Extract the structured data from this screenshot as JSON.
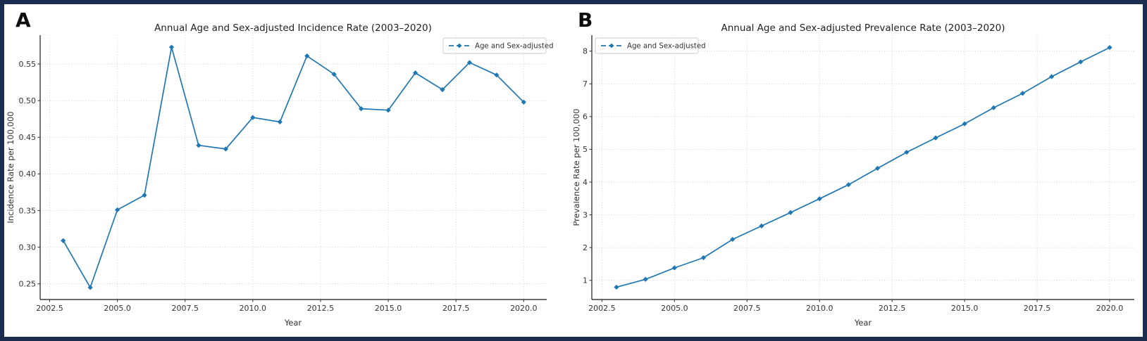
{
  "figure": {
    "frame_border_color": "#1b2d4f",
    "background_color": "#ffffff",
    "accent_line_color": "#1f77b4"
  },
  "chart_data": [
    {
      "panel_label": "A",
      "type": "line",
      "title": "Annual Age and Sex-adjusted Incidence Rate (2003–2020)",
      "xlabel": "Year",
      "ylabel": "Incidence Rate per 100,000",
      "legend": {
        "label": "Age and Sex-adjusted",
        "position": "top-right"
      },
      "line_color": "#1f77b4",
      "marker": "diamond",
      "grid": true,
      "x": [
        2003,
        2004,
        2005,
        2006,
        2007,
        2008,
        2009,
        2010,
        2011,
        2012,
        2013,
        2014,
        2015,
        2016,
        2017,
        2018,
        2019,
        2020
      ],
      "values": [
        0.309,
        0.245,
        0.351,
        0.371,
        0.573,
        0.439,
        0.434,
        0.477,
        0.471,
        0.561,
        0.536,
        0.489,
        0.487,
        0.538,
        0.515,
        0.552,
        0.535,
        0.498
      ],
      "xlim": [
        2002.15,
        2020.85
      ],
      "ylim": [
        0.2286,
        0.5894
      ],
      "xticks": {
        "values": [
          2002.5,
          2005.0,
          2007.5,
          2010.0,
          2012.5,
          2015.0,
          2017.5,
          2020.0
        ],
        "labels": [
          "2002.5",
          "2005.0",
          "2007.5",
          "2010.0",
          "2012.5",
          "2015.0",
          "2017.5",
          "2020.0"
        ]
      },
      "yticks": {
        "values": [
          0.25,
          0.3,
          0.35,
          0.4,
          0.45,
          0.5,
          0.55
        ],
        "labels": [
          "0.25",
          "0.30",
          "0.35",
          "0.40",
          "0.45",
          "0.50",
          "0.55"
        ]
      }
    },
    {
      "panel_label": "B",
      "type": "line",
      "title": "Annual Age and Sex-adjusted Prevalence Rate (2003–2020)",
      "xlabel": "Year",
      "ylabel": "Prevalence Rate per 100,000",
      "legend": {
        "label": "Age and Sex-adjusted",
        "position": "top-left"
      },
      "line_color": "#1f77b4",
      "marker": "diamond",
      "grid": true,
      "x": [
        2003,
        2004,
        2005,
        2006,
        2007,
        2008,
        2009,
        2010,
        2011,
        2012,
        2013,
        2014,
        2015,
        2016,
        2017,
        2018,
        2019,
        2020
      ],
      "values": [
        0.79,
        1.03,
        1.38,
        1.69,
        2.25,
        2.66,
        3.07,
        3.49,
        3.92,
        4.42,
        4.91,
        5.35,
        5.78,
        6.27,
        6.71,
        7.22,
        7.67,
        8.11
      ],
      "xlim": [
        2002.15,
        2020.85
      ],
      "ylim": [
        0.413,
        8.487
      ],
      "xticks": {
        "values": [
          2002.5,
          2005.0,
          2007.5,
          2010.0,
          2012.5,
          2015.0,
          2017.5,
          2020.0
        ],
        "labels": [
          "2002.5",
          "2005.0",
          "2007.5",
          "2010.0",
          "2012.5",
          "2015.0",
          "2017.5",
          "2020.0"
        ]
      },
      "yticks": {
        "values": [
          1,
          2,
          3,
          4,
          5,
          6,
          7,
          8
        ],
        "labels": [
          "1",
          "2",
          "3",
          "4",
          "5",
          "6",
          "7",
          "8"
        ]
      }
    }
  ]
}
